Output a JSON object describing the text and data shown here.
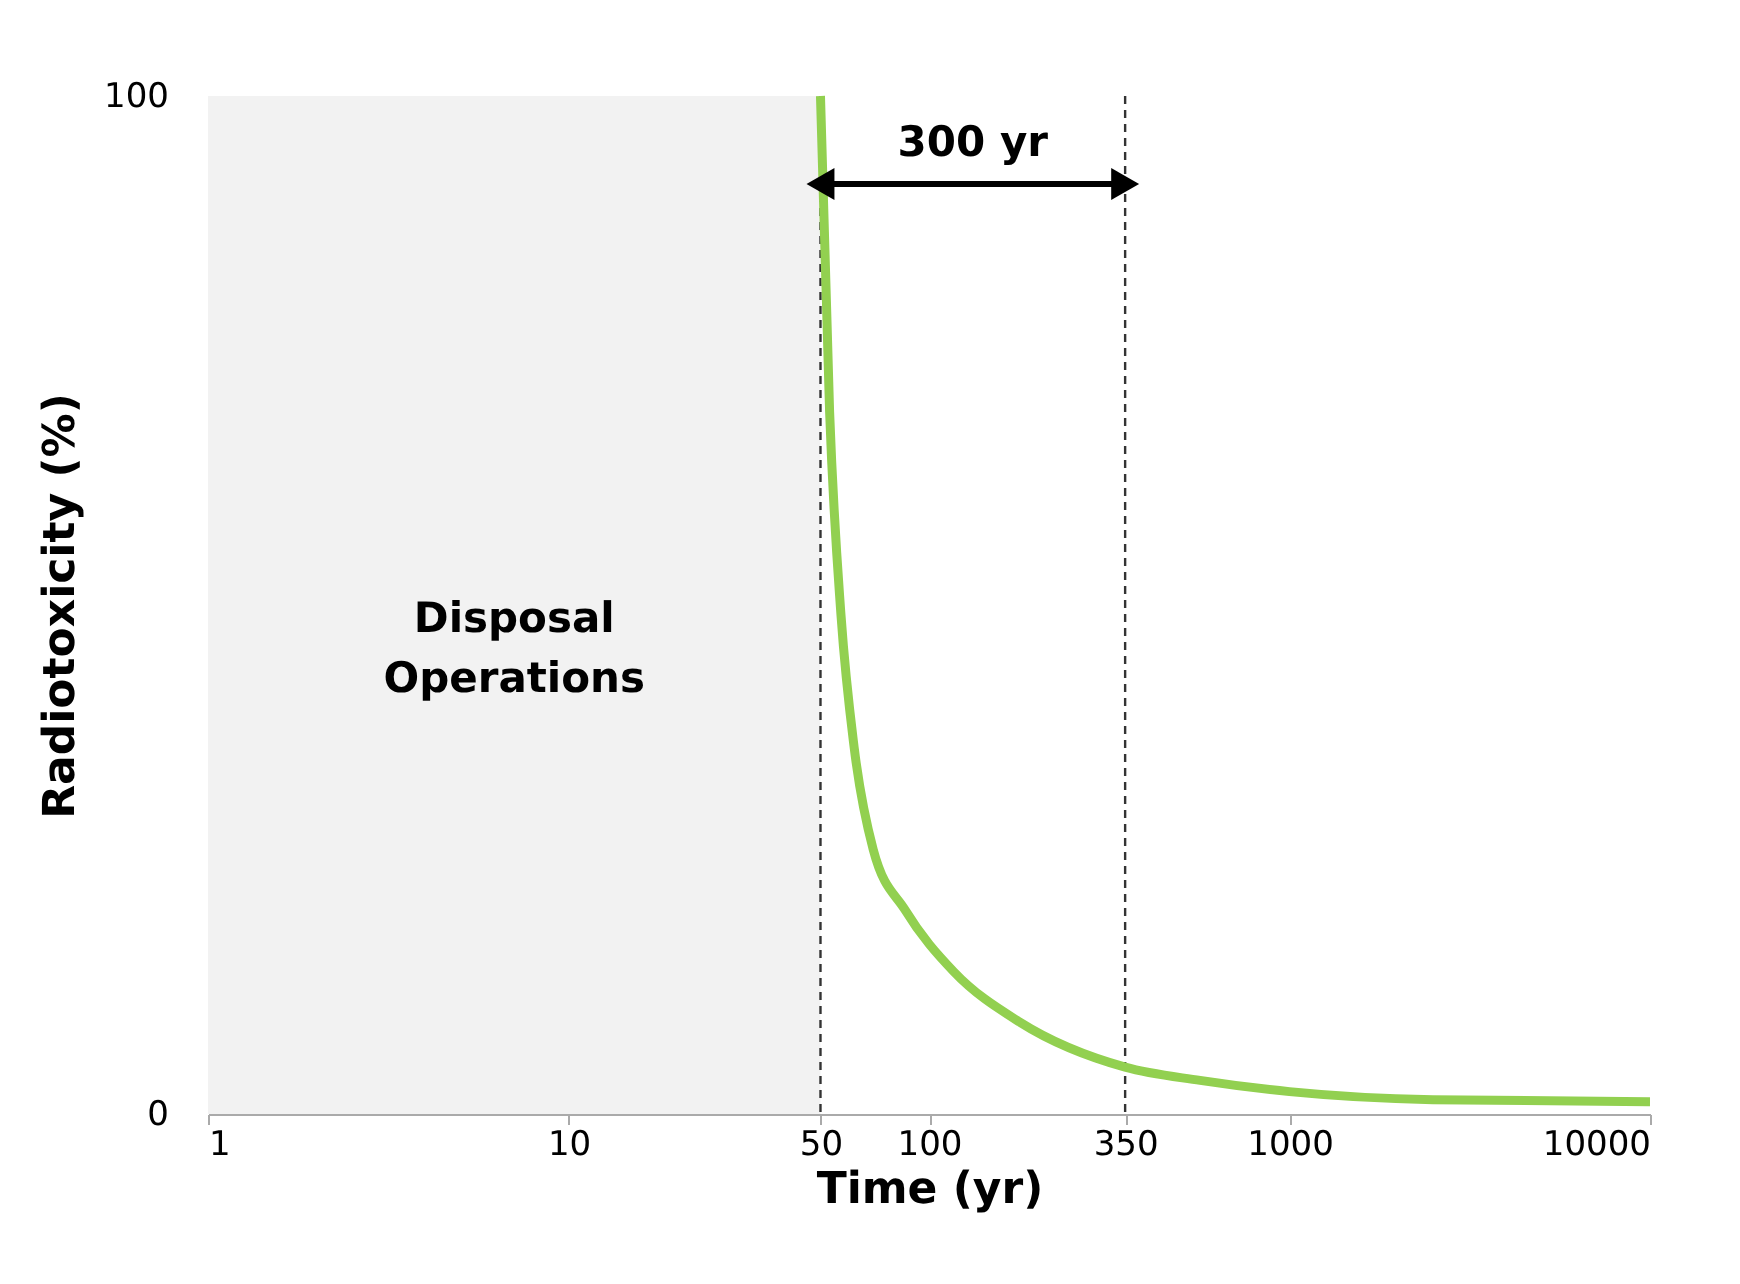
{
  "chart_data": {
    "type": "line",
    "xlabel": "Time (yr)",
    "ylabel": "Radiotoxicity (%)",
    "x": [
      50,
      53,
      57,
      62,
      70,
      86,
      117,
      179,
      350,
      565,
      1000,
      2500,
      10000
    ],
    "series": [
      {
        "color": "#92d050",
        "values": [
          100,
          69,
          49,
          36,
          26,
          20,
          14,
          9,
          4.6,
          3.3,
          2.2,
          1.4,
          1.2
        ]
      }
    ],
    "log": "x",
    "xlim": [
      1,
      10000
    ],
    "xticks": [
      1,
      10,
      50,
      100,
      350,
      1000,
      10000
    ],
    "ylim": [
      0,
      100
    ],
    "yticks": [
      0,
      100
    ],
    "grid": false,
    "marker": "none",
    "line_style": "solid",
    "bands": [
      {
        "axis": "x",
        "from": 1,
        "to": 50,
        "label": "Disposal Operations",
        "color": "#f2f2f2"
      }
    ],
    "ref_lines": [
      {
        "axis": "x",
        "value": 50,
        "line_style": "dashed"
      },
      {
        "axis": "x",
        "value": 350,
        "line_style": "dashed"
      }
    ],
    "annotations": [
      "300 yr"
    ]
  }
}
